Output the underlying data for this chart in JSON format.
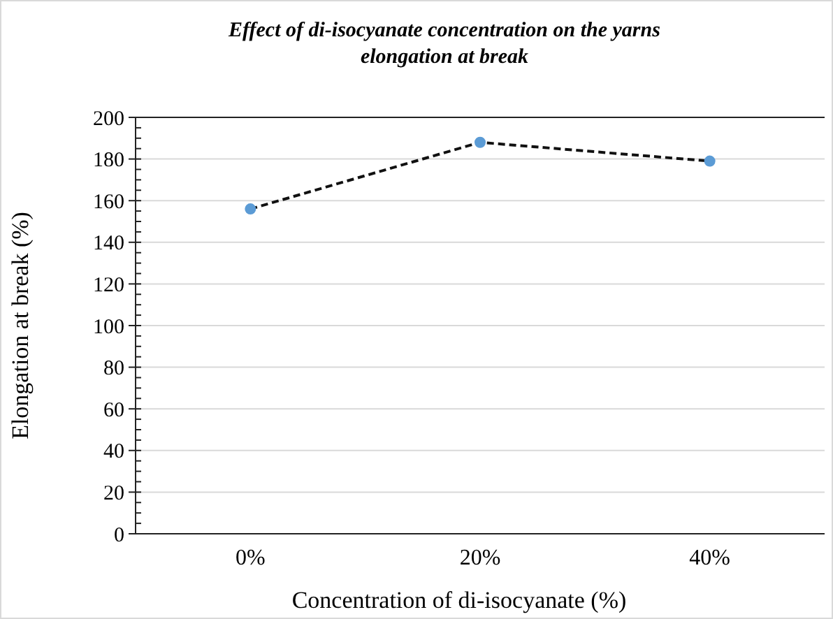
{
  "chart_data": {
    "type": "line",
    "title": "Effect of di-isocyanate concentration on the yarns elongation at break",
    "xlabel": "Concentration of di-isocyanate (%)",
    "ylabel": "Elongation  at break (%)",
    "categories": [
      "0%",
      "20%",
      "40%"
    ],
    "series": [
      {
        "color": "#5b9bd5",
        "values": [
          156,
          188,
          179
        ]
      }
    ],
    "ylim": [
      0,
      200
    ],
    "yticks": [
      0,
      20,
      40,
      60,
      80,
      100,
      120,
      140,
      160,
      180,
      200
    ],
    "grid": "y",
    "marker": "circle",
    "line_style": "dashed"
  }
}
